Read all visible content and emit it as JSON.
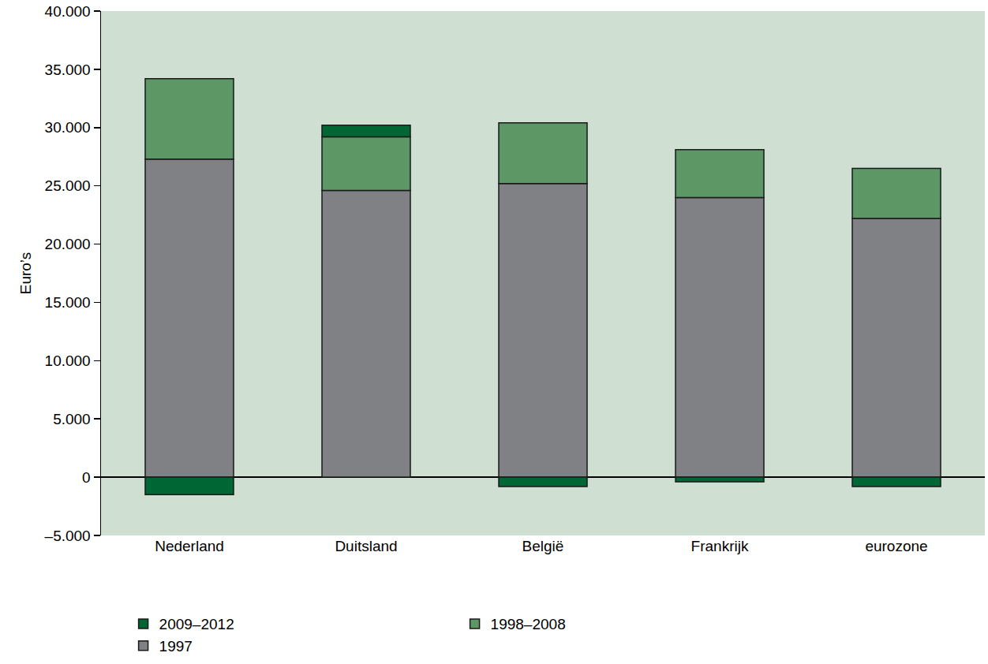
{
  "chart_data": {
    "type": "bar",
    "stacked": true,
    "categories": [
      "Nederland",
      "Duitsland",
      "België",
      "Frankrijk",
      "eurozone"
    ],
    "series": [
      {
        "name": "1997",
        "color": "#808185",
        "values": [
          27300,
          24600,
          25200,
          24000,
          22200
        ]
      },
      {
        "name": "1998–2008",
        "color": "#5e9766",
        "values": [
          6900,
          4600,
          5200,
          4100,
          4300
        ]
      },
      {
        "name": "2009–2012",
        "color": "#006633",
        "values": [
          -1500,
          1000,
          -800,
          -400,
          -800
        ]
      }
    ],
    "y_label": "Euro’s",
    "ylim": [
      -5000,
      40000
    ],
    "yticks": [
      {
        "value": -5000,
        "label": "–5.000"
      },
      0,
      {
        "value": 5000,
        "label": "5.000"
      },
      {
        "value": 10000,
        "label": "10.000"
      },
      {
        "value": 15000,
        "label": "15.000"
      },
      {
        "value": 20000,
        "label": "20.000"
      },
      {
        "value": 25000,
        "label": "25.000"
      },
      {
        "value": 30000,
        "label": "30.000"
      },
      {
        "value": 35000,
        "label": "35.000"
      },
      {
        "value": 40000,
        "label": "40.000"
      }
    ],
    "grid": false,
    "legend": "bottom"
  }
}
